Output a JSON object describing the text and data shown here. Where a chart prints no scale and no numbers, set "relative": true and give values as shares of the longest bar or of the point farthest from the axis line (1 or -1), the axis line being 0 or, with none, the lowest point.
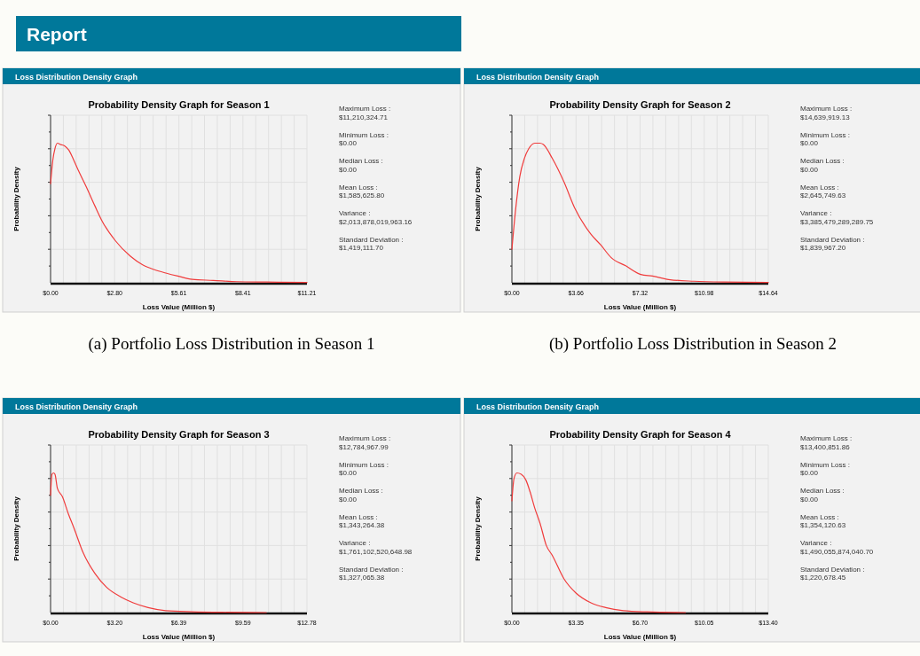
{
  "chart_data": [
    {
      "type": "line",
      "title": "Probability Density Graph for Season 1",
      "xlabel": "Loss Value (Million $)",
      "ylabel": "Probability Density",
      "annotations": [
        "Report",
        "Loss Distribution Density Graph",
        "(a) Portfolio Loss Distribution in Season 1",
        "Maximum Loss :\n$11,210,324.71",
        "Minimum Loss :\n$0.00",
        "Median Loss :\n$0.00",
        "Mean Loss :\n$1,585,625.80",
        "Variance :\n$2,013,878,019,963.16",
        "Standard Deviation :\n$1,419,111.70"
      ],
      "xlim": [
        0,
        11.21
      ],
      "xticks": [
        {
          "value": 0,
          "label": "$0.00"
        },
        {
          "value": 2.8,
          "label": "$2.80"
        },
        {
          "value": 5.61,
          "label": "$5.61"
        },
        {
          "value": 8.41,
          "label": "$8.41"
        },
        {
          "value": 11.21,
          "label": "$11.21"
        }
      ],
      "relative": true,
      "grid": true,
      "marker": "none",
      "line_style": "solid",
      "series": [
        {
          "color": "#f03c3c",
          "x": [
            0,
            0.1,
            0.19,
            0.3,
            0.45,
            0.62,
            0.8,
            1.01,
            1.23,
            1.61,
            1.94,
            2.26,
            2.84,
            3.49,
            4.01,
            4.52,
            5.04,
            5.56,
            6.2,
            7.11,
            8.14,
            9.43,
            11.21
          ],
          "values": [
            0.71,
            0.88,
            0.96,
            1,
            0.99,
            0.98,
            0.95,
            0.88,
            0.8,
            0.67,
            0.55,
            0.44,
            0.3,
            0.19,
            0.13,
            0.095,
            0.07,
            0.048,
            0.024,
            0.017,
            0.008,
            0.005,
            0.002
          ]
        }
      ]
    },
    {
      "type": "line",
      "title": "Probability Density Graph for Season 2",
      "xlabel": "Loss Value (Million $)",
      "ylabel": "Probability Density",
      "annotations": [
        "Loss Distribution Density Graph",
        "(b) Portfolio Loss Distribution in Season 2",
        "Maximum Loss :\n$14,639,919.13",
        "Minimum Loss :\n$0.00",
        "Median Loss :\n$0.00",
        "Mean Loss :\n$2,645,749.63",
        "Variance :\n$3,385,479,289,289.75",
        "Standard Deviation :\n$1,839,967.20"
      ],
      "xlim": [
        0,
        14.64
      ],
      "xticks": [
        {
          "value": 0,
          "label": "$0.00"
        },
        {
          "value": 3.66,
          "label": "$3.66"
        },
        {
          "value": 7.32,
          "label": "$7.32"
        },
        {
          "value": 10.98,
          "label": "$10.98"
        },
        {
          "value": 14.64,
          "label": "$14.64"
        }
      ],
      "relative": true,
      "grid": true,
      "marker": "none",
      "line_style": "solid",
      "series": [
        {
          "color": "#f03c3c",
          "x": [
            0,
            0.2,
            0.45,
            0.71,
            0.96,
            1.3,
            1.6,
            1.8,
            2.31,
            2.98,
            3.57,
            4.5,
            5.08,
            5.67,
            6.52,
            7.36,
            8.03,
            9.04,
            10.39,
            12.07,
            14.64
          ],
          "values": [
            0.24,
            0.51,
            0.76,
            0.89,
            0.96,
            1,
            1,
            0.99,
            0.89,
            0.72,
            0.54,
            0.35,
            0.27,
            0.18,
            0.12,
            0.06,
            0.048,
            0.022,
            0.011,
            0.005,
            0.002
          ]
        }
      ]
    },
    {
      "type": "line",
      "title": "Probability Density Graph for Season 3",
      "xlabel": "Loss Value (Million $)",
      "ylabel": "Probability Density",
      "annotations": [
        "Loss Distribution Density Graph",
        "Maximum Loss :\n$12,784,967.99",
        "Minimum Loss :\n$0.00",
        "Median Loss :\n$0.00",
        "Mean Loss :\n$1,343,264.38",
        "Variance :\n$1,761,102,520,648.98",
        "Standard Deviation :\n$1,327,065.38"
      ],
      "xlim": [
        0,
        12.78
      ],
      "xticks": [
        {
          "value": 0,
          "label": "$0.00"
        },
        {
          "value": 3.2,
          "label": "$3.20"
        },
        {
          "value": 6.39,
          "label": "$6.39"
        },
        {
          "value": 9.59,
          "label": "$9.59"
        },
        {
          "value": 12.78,
          "label": "$12.78"
        }
      ],
      "relative": true,
      "grid": true,
      "marker": "none",
      "line_style": "solid",
      "series": [
        {
          "color": "#f03c3c",
          "x": [
            0,
            0.07,
            0.15,
            0.22,
            0.34,
            0.59,
            0.88,
            1.18,
            1.62,
            2.21,
            2.8,
            3.53,
            4.12,
            4.86,
            5.74,
            7.07,
            8.54,
            10.75
          ],
          "values": [
            0.84,
            0.99,
            1,
            0.99,
            0.89,
            0.83,
            0.71,
            0.6,
            0.43,
            0.28,
            0.18,
            0.11,
            0.07,
            0.036,
            0.014,
            0.006,
            0.002,
            0
          ]
        }
      ]
    },
    {
      "type": "line",
      "title": "Probability Density Graph for Season 4",
      "xlabel": "Loss Value (Million $)",
      "ylabel": "Probability Density",
      "annotations": [
        "Loss Distribution Density Graph",
        "Maximum Loss :\n$13,400,851.86",
        "Minimum Loss :\n$0.00",
        "Median Loss :\n$0.00",
        "Mean Loss :\n$1,354,120.63",
        "Variance :\n$1,490,055,874,040.70",
        "Standard Deviation :\n$1,220,678.45"
      ],
      "xlim": [
        0,
        13.4
      ],
      "xticks": [
        {
          "value": 0,
          "label": "$0.00"
        },
        {
          "value": 3.35,
          "label": "$3.35"
        },
        {
          "value": 6.7,
          "label": "$6.70"
        },
        {
          "value": 10.05,
          "label": "$10.05"
        },
        {
          "value": 13.4,
          "label": "$13.40"
        }
      ],
      "relative": true,
      "grid": true,
      "marker": "none",
      "line_style": "solid",
      "series": [
        {
          "color": "#f03c3c",
          "x": [
            0,
            0.11,
            0.26,
            0.49,
            0.73,
            0.96,
            1.19,
            1.47,
            1.8,
            2.11,
            2.73,
            3.35,
            4.13,
            4.9,
            5.83,
            7.06,
            9.07
          ],
          "values": [
            0.8,
            0.96,
            1,
            0.99,
            0.95,
            0.86,
            0.75,
            0.64,
            0.48,
            0.41,
            0.24,
            0.14,
            0.07,
            0.036,
            0.014,
            0.005,
            0
          ]
        }
      ]
    }
  ]
}
